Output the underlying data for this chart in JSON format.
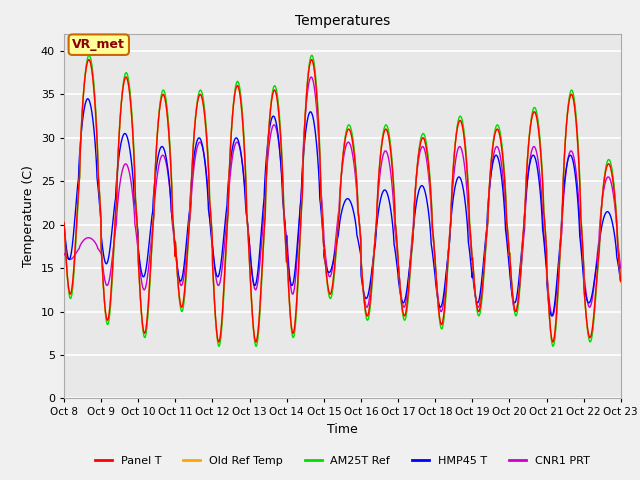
{
  "title": "Temperatures",
  "xlabel": "Time",
  "ylabel": "Temperature (C)",
  "ylim": [
    0,
    42
  ],
  "yticks": [
    0,
    5,
    10,
    15,
    20,
    25,
    30,
    35,
    40
  ],
  "legend_labels": [
    "Panel T",
    "Old Ref Temp",
    "AM25T Ref",
    "HMP45 T",
    "CNR1 PRT"
  ],
  "legend_colors": [
    "#ff0000",
    "#ffa500",
    "#00dd00",
    "#0000ff",
    "#cc00cc"
  ],
  "annotation_text": "VR_met",
  "annotation_bg": "#ffff99",
  "annotation_border": "#cc6600",
  "plot_bg_color": "#e8e8e8",
  "fig_bg_color": "#f0f0f0",
  "tick_labels": [
    "Oct 8",
    "Oct 9",
    "Oct 10",
    "Oct 11",
    "Oct 12",
    "Oct 13",
    "Oct 14",
    "Oct 15",
    "Oct 16",
    "Oct 17",
    "Oct 18",
    "Oct 19",
    "Oct 20",
    "Oct 21",
    "Oct 22",
    "Oct 23"
  ],
  "num_days": 15,
  "ref_daily_maxes": [
    39.0,
    37.0,
    35.0,
    35.0,
    36.0,
    35.5,
    39.0,
    31.0,
    31.0,
    30.0,
    32.0,
    31.0,
    33.0,
    35.0,
    27.0,
    27.0
  ],
  "ref_daily_mins": [
    12.0,
    9.0,
    7.5,
    10.5,
    6.5,
    6.5,
    7.5,
    12.0,
    9.5,
    9.5,
    8.5,
    10.0,
    10.0,
    6.5,
    7.0,
    7.5
  ],
  "hmp45_daily_maxes": [
    34.5,
    30.5,
    29.0,
    30.0,
    30.0,
    32.5,
    33.0,
    23.0,
    24.0,
    24.5,
    25.5,
    28.0,
    28.0,
    28.0,
    21.5,
    21.5
  ],
  "hmp45_daily_mins": [
    16.0,
    15.5,
    14.0,
    13.5,
    14.0,
    13.0,
    13.0,
    14.5,
    11.5,
    11.0,
    10.5,
    11.0,
    11.0,
    9.5,
    11.0,
    11.5
  ],
  "cnr1_daily_maxes": [
    18.5,
    27.0,
    28.0,
    29.5,
    29.5,
    31.5,
    37.0,
    29.5,
    28.5,
    29.0,
    29.0,
    29.0,
    29.0,
    28.5,
    25.5,
    25.5
  ],
  "cnr1_daily_mins": [
    16.0,
    13.0,
    12.5,
    13.0,
    13.0,
    12.5,
    12.0,
    14.0,
    10.5,
    10.5,
    10.0,
    10.5,
    10.0,
    9.5,
    10.5,
    11.0
  ]
}
